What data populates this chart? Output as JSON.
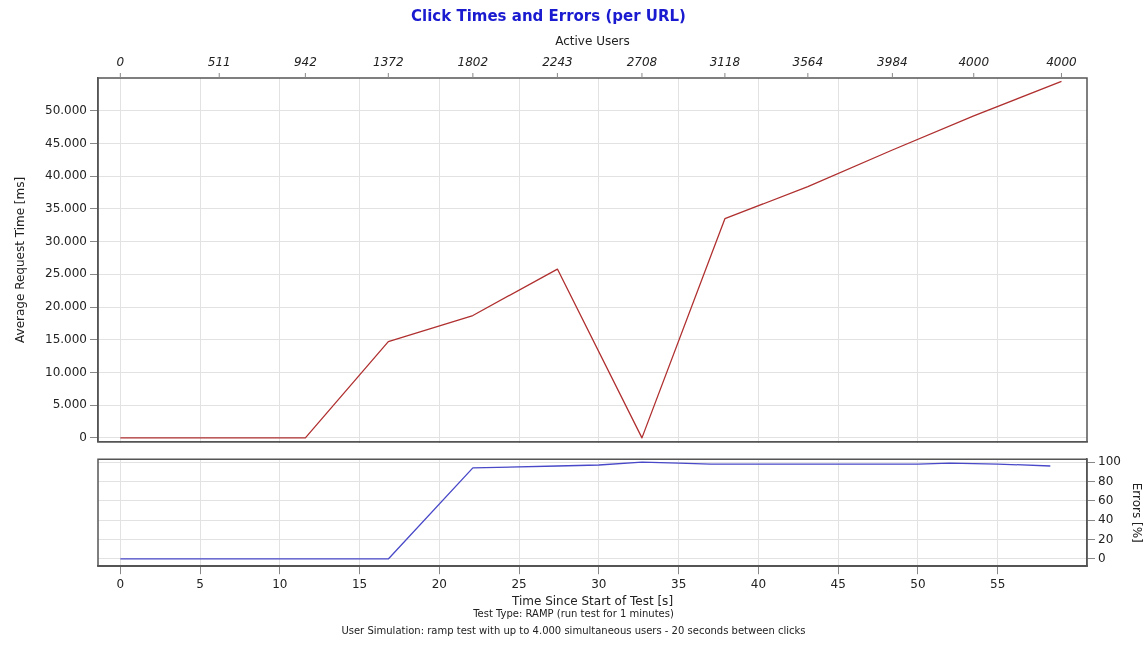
{
  "chart_data": [
    {
      "type": "line",
      "title": "Click Times and Errors (per URL)",
      "ylabel": "Average Request Time [ms]",
      "x2label": "Active Users",
      "xlim": [
        -1.4,
        60.6
      ],
      "xticks": [
        0,
        5,
        10,
        15,
        20,
        25,
        30,
        35,
        40,
        45,
        50,
        55
      ],
      "annotations": [
        "0",
        "511",
        "942",
        "1372",
        "1802",
        "2243",
        "2708",
        "3118",
        "3564",
        "3984",
        "4000",
        "4000"
      ],
      "ylim": [
        -600,
        55000
      ],
      "yticks": [
        {
          "value": 0,
          "label": "0"
        },
        {
          "value": 5000,
          "label": "5.000"
        },
        {
          "value": 10000,
          "label": "10.000"
        },
        {
          "value": 15000,
          "label": "15.000"
        },
        {
          "value": 20000,
          "label": "20.000"
        },
        {
          "value": 25000,
          "label": "25.000"
        },
        {
          "value": 30000,
          "label": "30.000"
        },
        {
          "value": 35000,
          "label": "35.000"
        },
        {
          "value": 40000,
          "label": "40.000"
        },
        {
          "value": 45000,
          "label": "45.000"
        },
        {
          "value": 50000,
          "label": "50.000"
        }
      ],
      "tick_labels": "y",
      "grid": true,
      "legend": false,
      "marker": "none",
      "series": [
        {
          "color": "#b03030",
          "x": [
            0,
            6.2,
            11.6,
            16.8,
            22.1,
            27.4,
            32.7,
            37.9,
            43.1,
            48.4,
            53.5,
            59
          ],
          "values": [
            0,
            0,
            0,
            14700,
            18700,
            25800,
            0,
            33500,
            38400,
            44000,
            49200,
            54500
          ]
        }
      ]
    },
    {
      "type": "line",
      "xlabel": "Time Since Start of Test [s]",
      "y2label": "Errors [%]",
      "xlim": [
        -1.4,
        60.6
      ],
      "xticks": [
        0,
        5,
        10,
        15,
        20,
        25,
        30,
        35,
        40,
        45,
        50,
        55
      ],
      "y2lim": [
        -7.5,
        103
      ],
      "y2ticks": [
        0,
        20,
        40,
        60,
        80,
        100
      ],
      "grid": true,
      "legend": false,
      "marker": "none",
      "annotations": [
        "Test Type: RAMP (run test for 1 minutes)",
        "User Simulation: ramp test with up to 4.000 simultaneous users - 20 seconds between clicks"
      ],
      "series": [
        {
          "color": "#4848c8",
          "axis": "y2",
          "x": [
            0,
            16.8,
            22.1,
            27.4,
            30,
            32.7,
            35,
            37,
            50,
            52,
            55,
            58.3
          ],
          "values": [
            0,
            0,
            94,
            96,
            97,
            100,
            99,
            98,
            98,
            99,
            98,
            96
          ]
        }
      ]
    }
  ]
}
